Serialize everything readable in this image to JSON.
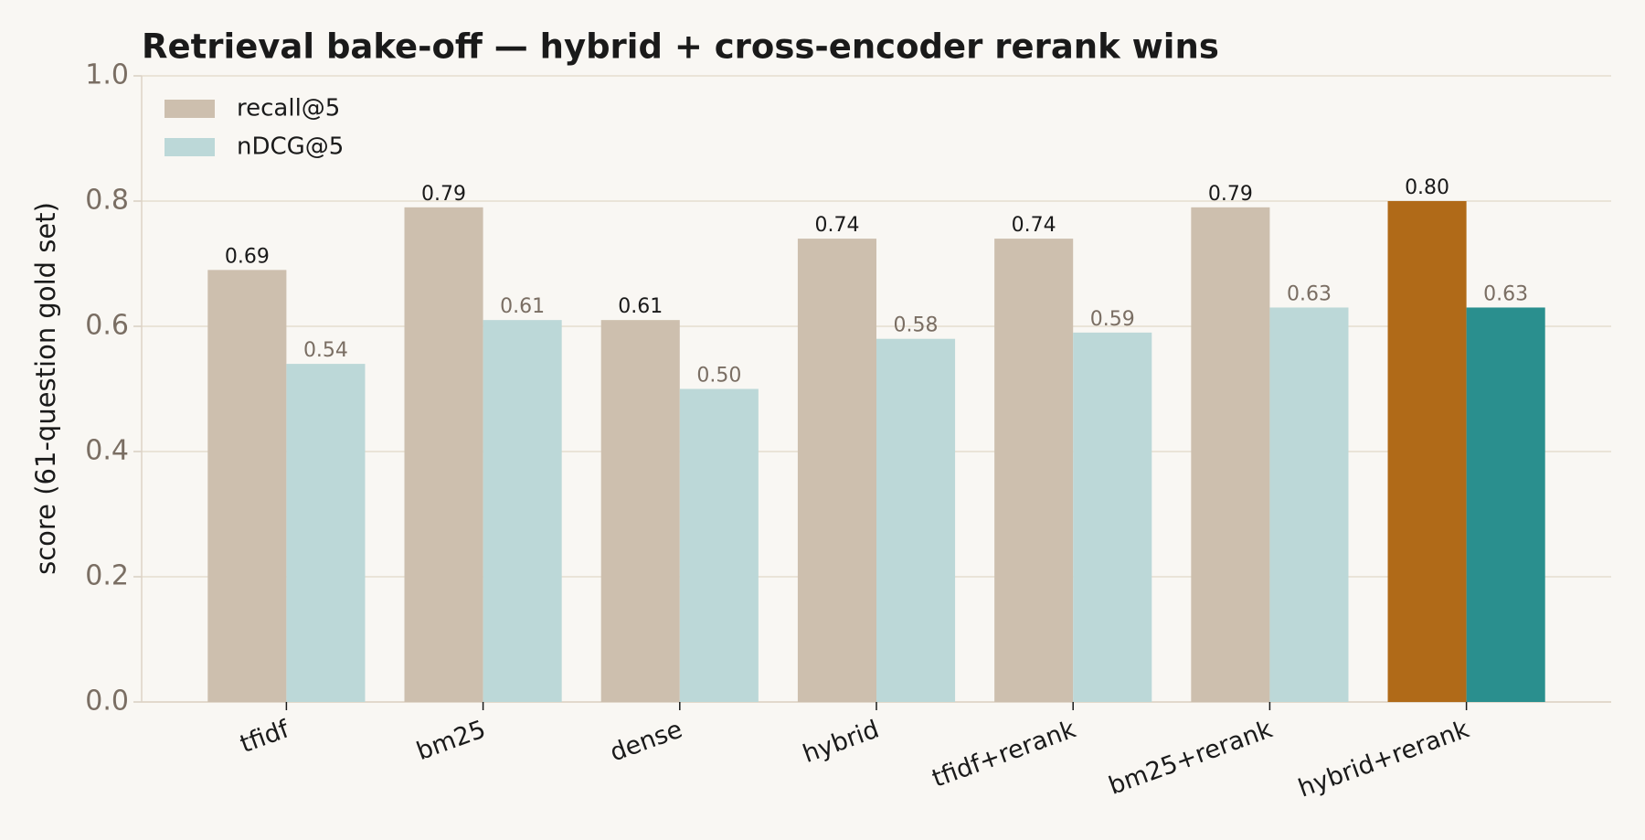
{
  "chart_data": {
    "type": "bar",
    "title": "Retrieval bake-off — hybrid + cross-encoder rerank wins",
    "y_label": "score (61-question gold set)",
    "categories": [
      "tfidf",
      "bm25",
      "dense",
      "hybrid",
      "tfidf+rerank",
      "bm25+rerank",
      "hybrid+rerank"
    ],
    "series": [
      {
        "name": "recall@5",
        "color": "#cdbfae",
        "colors": [
          "#cdbfae",
          "#cdbfae",
          "#cdbfae",
          "#cdbfae",
          "#cdbfae",
          "#cdbfae",
          "#b06a18"
        ],
        "values": [
          0.69,
          0.79,
          0.61,
          0.74,
          0.74,
          0.79,
          0.8
        ],
        "value_labels": [
          "0.69",
          "0.79",
          "0.61",
          "0.74",
          "0.74",
          "0.79",
          "0.80"
        ]
      },
      {
        "name": "nDCG@5",
        "color": "#bcd8d8",
        "colors": [
          "#bcd8d8",
          "#bcd8d8",
          "#bcd8d8",
          "#bcd8d8",
          "#bcd8d8",
          "#bcd8d8",
          "#2a8f8e"
        ],
        "values": [
          0.54,
          0.61,
          0.5,
          0.58,
          0.59,
          0.63,
          0.63
        ],
        "value_labels": [
          "0.54",
          "0.61",
          "0.50",
          "0.58",
          "0.59",
          "0.63",
          "0.63"
        ]
      }
    ],
    "ylim": [
      0,
      1
    ],
    "yticks": [
      {
        "value": 0,
        "label": "0.0"
      },
      0.2,
      0.4,
      0.6,
      0.8,
      {
        "value": 1,
        "label": "1.0"
      }
    ],
    "grid": true,
    "legend": "upper left"
  }
}
